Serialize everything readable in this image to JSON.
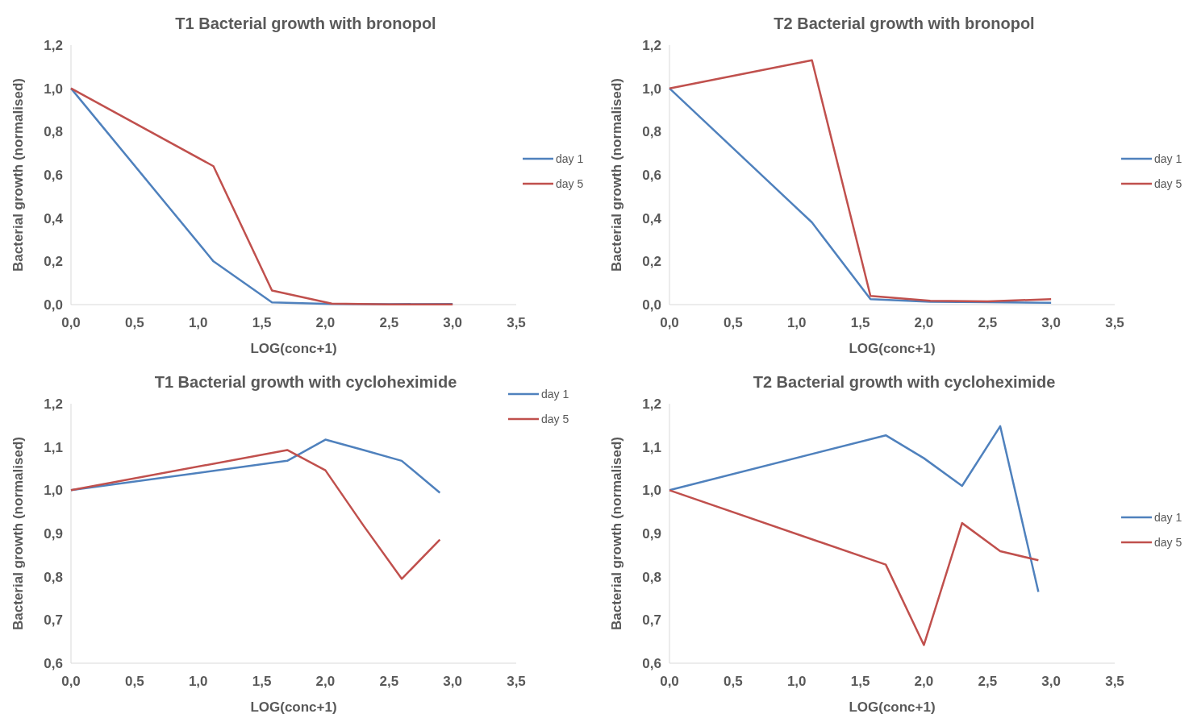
{
  "chart_data": [
    {
      "type": "line",
      "title": "T1 Bacterial growth with bronopol",
      "xlabel": "LOG(conc+1)",
      "ylabel": "Bacterial growth (normalised)",
      "x": [
        0,
        1.12,
        1.58,
        2.05,
        2.5,
        3.0
      ],
      "series": [
        {
          "name": "day 1",
          "color": "#4f81bd",
          "values": [
            1,
            0.2,
            0.01,
            0.003,
            0.002,
            0.003
          ]
        },
        {
          "name": "day 5",
          "color": "#c0504d",
          "values": [
            1,
            0.64,
            0.065,
            0.005,
            0.001,
            0.001
          ]
        }
      ],
      "xlim": [
        0,
        3.5
      ],
      "xticks": [
        {
          "value": 0,
          "label": "0,0"
        },
        {
          "value": 0.5,
          "label": "0,5"
        },
        {
          "value": 1,
          "label": "1,0"
        },
        {
          "value": 1.5,
          "label": "1,5"
        },
        {
          "value": 2,
          "label": "2,0"
        },
        {
          "value": 2.5,
          "label": "2,5"
        },
        {
          "value": 3,
          "label": "3,0"
        },
        {
          "value": 3.5,
          "label": "3,5"
        }
      ],
      "ylim": [
        0,
        1.2
      ],
      "yticks": [
        {
          "value": 0,
          "label": "0,0"
        },
        {
          "value": 0.2,
          "label": "0,2"
        },
        {
          "value": 0.4,
          "label": "0,4"
        },
        {
          "value": 0.6,
          "label": "0,6"
        },
        {
          "value": 0.8,
          "label": "0,8"
        },
        {
          "value": 1,
          "label": "1,0"
        },
        {
          "value": 1.2,
          "label": "1,2"
        }
      ],
      "grid": false,
      "legend": "right",
      "marker": "none",
      "line_style": "solid"
    },
    {
      "type": "line",
      "title": "T2 Bacterial growth with bronopol",
      "xlabel": "LOG(conc+1)",
      "ylabel": "Bacterial growth (normalised)",
      "x": [
        0,
        1.12,
        1.58,
        2.05,
        2.5,
        3.0
      ],
      "series": [
        {
          "name": "day 1",
          "color": "#4f81bd",
          "values": [
            1,
            0.38,
            0.025,
            0.013,
            0.011,
            0.008
          ]
        },
        {
          "name": "day 5",
          "color": "#c0504d",
          "values": [
            1,
            1.13,
            0.04,
            0.018,
            0.015,
            0.025
          ]
        }
      ],
      "xlim": [
        0,
        3.5
      ],
      "xticks": [
        {
          "value": 0,
          "label": "0,0"
        },
        {
          "value": 0.5,
          "label": "0,5"
        },
        {
          "value": 1,
          "label": "1,0"
        },
        {
          "value": 1.5,
          "label": "1,5"
        },
        {
          "value": 2,
          "label": "2,0"
        },
        {
          "value": 2.5,
          "label": "2,5"
        },
        {
          "value": 3,
          "label": "3,0"
        },
        {
          "value": 3.5,
          "label": "3,5"
        }
      ],
      "ylim": [
        0,
        1.2
      ],
      "yticks": [
        {
          "value": 0,
          "label": "0,0"
        },
        {
          "value": 0.2,
          "label": "0,2"
        },
        {
          "value": 0.4,
          "label": "0,4"
        },
        {
          "value": 0.6,
          "label": "0,6"
        },
        {
          "value": 0.8,
          "label": "0,8"
        },
        {
          "value": 1,
          "label": "1,0"
        },
        {
          "value": 1.2,
          "label": "1,2"
        }
      ],
      "grid": false,
      "legend": "right",
      "marker": "none",
      "line_style": "solid"
    },
    {
      "type": "line",
      "title": "T1 Bacterial growth with cycloheximide",
      "xlabel": "LOG(conc+1)",
      "ylabel": "Bacterial growth (normalised)",
      "x": [
        0,
        1.7,
        2.0,
        2.3,
        2.6,
        2.9
      ],
      "series": [
        {
          "name": "day 1",
          "color": "#4f81bd",
          "values": [
            1,
            1.068,
            1.117,
            1.093,
            1.068,
            0.994
          ]
        },
        {
          "name": "day 5",
          "color": "#c0504d",
          "values": [
            1,
            1.093,
            1.046,
            0.918,
            0.795,
            0.886
          ]
        }
      ],
      "xlim": [
        0,
        3.5
      ],
      "xticks": [
        {
          "value": 0,
          "label": "0,0"
        },
        {
          "value": 0.5,
          "label": "0,5"
        },
        {
          "value": 1,
          "label": "1,0"
        },
        {
          "value": 1.5,
          "label": "1,5"
        },
        {
          "value": 2,
          "label": "2,0"
        },
        {
          "value": 2.5,
          "label": "2,5"
        },
        {
          "value": 3,
          "label": "3,0"
        },
        {
          "value": 3.5,
          "label": "3,5"
        }
      ],
      "ylim": [
        0.6,
        1.2
      ],
      "yticks": [
        {
          "value": 0.6,
          "label": "0,6"
        },
        {
          "value": 0.7,
          "label": "0,7"
        },
        {
          "value": 0.8,
          "label": "0,8"
        },
        {
          "value": 0.9,
          "label": "0,9"
        },
        {
          "value": 1,
          "label": "1,0"
        },
        {
          "value": 1.1,
          "label": "1,1"
        },
        {
          "value": 1.2,
          "label": "1,2"
        }
      ],
      "grid": false,
      "legend": "top right",
      "marker": "none",
      "line_style": "solid"
    },
    {
      "type": "line",
      "title": "T2 Bacterial growth with cycloheximide",
      "xlabel": "LOG(conc+1)",
      "ylabel": "Bacterial growth (normalised)",
      "x": [
        0,
        1.7,
        2.0,
        2.3,
        2.6,
        2.9
      ],
      "series": [
        {
          "name": "day 1",
          "color": "#4f81bd",
          "values": [
            1,
            1.127,
            1.074,
            1.01,
            1.148,
            0.765
          ]
        },
        {
          "name": "day 5",
          "color": "#c0504d",
          "values": [
            1,
            0.828,
            0.642,
            0.924,
            0.859,
            0.838
          ]
        }
      ],
      "xlim": [
        0,
        3.5
      ],
      "xticks": [
        {
          "value": 0,
          "label": "0,0"
        },
        {
          "value": 0.5,
          "label": "0,5"
        },
        {
          "value": 1,
          "label": "1,0"
        },
        {
          "value": 1.5,
          "label": "1,5"
        },
        {
          "value": 2,
          "label": "2,0"
        },
        {
          "value": 2.5,
          "label": "2,5"
        },
        {
          "value": 3,
          "label": "3,0"
        },
        {
          "value": 3.5,
          "label": "3,5"
        }
      ],
      "ylim": [
        0.6,
        1.2
      ],
      "yticks": [
        {
          "value": 0.6,
          "label": "0,6"
        },
        {
          "value": 0.7,
          "label": "0,7"
        },
        {
          "value": 0.8,
          "label": "0,8"
        },
        {
          "value": 0.9,
          "label": "0,9"
        },
        {
          "value": 1,
          "label": "1,0"
        },
        {
          "value": 1.1,
          "label": "1,1"
        },
        {
          "value": 1.2,
          "label": "1,2"
        }
      ],
      "grid": false,
      "legend": "right",
      "marker": "none",
      "line_style": "solid"
    }
  ]
}
